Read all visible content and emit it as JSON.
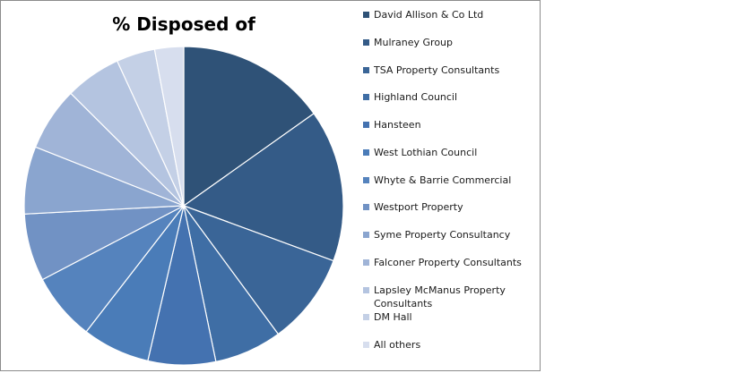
{
  "chart_data": {
    "type": "pie",
    "title": "% Disposed of",
    "categories": [
      "David Allison & Co Ltd",
      "Mulraney Group",
      "TSA Property Consultants",
      "Highland Council",
      "Hansteen",
      "West Lothian Council",
      "Whyte & Barrie Commercial",
      "Westport Property",
      "Syme Property Consultancy",
      "Falconer Property Consultants",
      "Lapsley McManus Property Consultants",
      "DM Hall",
      "All others"
    ],
    "values": [
      15.5,
      15.8,
      9.5,
      7.0,
      7.0,
      7.0,
      7.0,
      7.0,
      7.0,
      6.6,
      5.8,
      4.0,
      3.0
    ],
    "colors": [
      "#2f5277",
      "#345b87",
      "#3a6597",
      "#3f6ea5",
      "#4472b0",
      "#4a7cb8",
      "#5583bd",
      "#7192c4",
      "#8aa5cf",
      "#a0b4d7",
      "#b4c4e0",
      "#c4d0e6",
      "#d7deee"
    ],
    "legend_position": "right",
    "start_angle": "top",
    "direction": "clockwise",
    "slice_border_color": "#ffffff"
  }
}
